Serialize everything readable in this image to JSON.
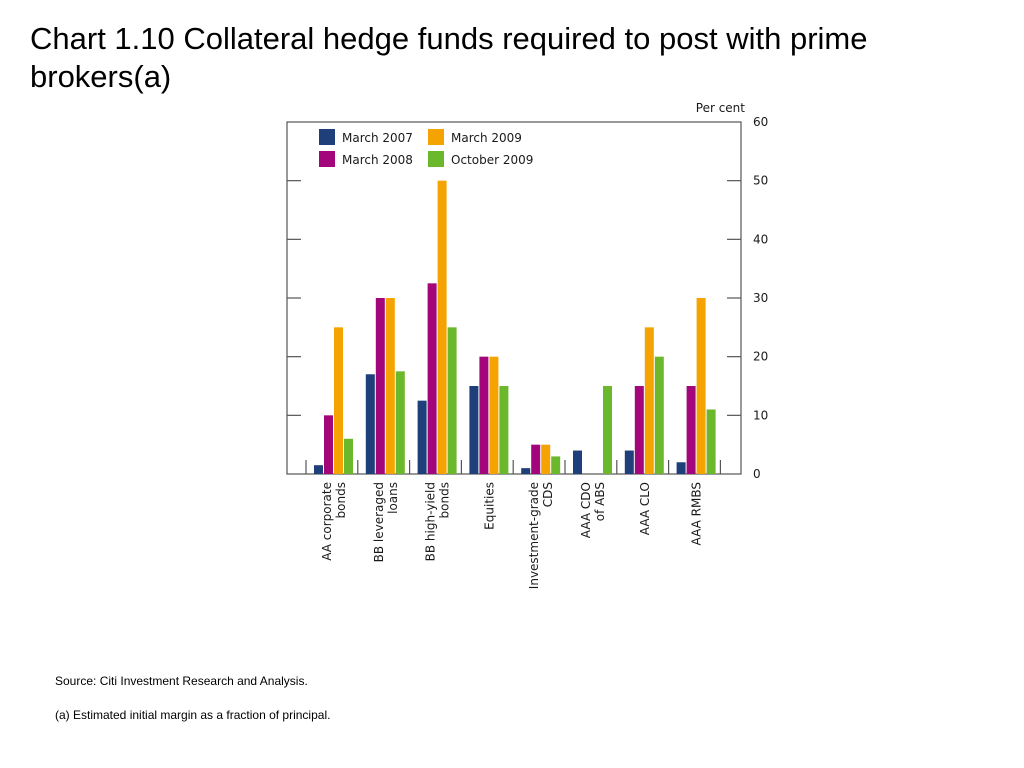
{
  "slide": {
    "title": "Chart 1.10  Collateral hedge funds required to post with prime brokers(a)",
    "source": "Source:  Citi Investment Research and Analysis.",
    "footnote": "(a)  Estimated initial margin as a fraction of principal."
  },
  "chart_data": {
    "type": "bar",
    "title": "",
    "ylabel": "Per cent",
    "ylim": [
      0,
      60
    ],
    "yticks": [
      0,
      10,
      20,
      30,
      40,
      50,
      60
    ],
    "categories": [
      [
        "AA corporate",
        "bonds"
      ],
      [
        "BB leveraged",
        "loans"
      ],
      [
        "BB high-yield",
        "bonds"
      ],
      [
        "Equities"
      ],
      [
        "Investment-grade",
        "CDS"
      ],
      [
        "AAA CDO",
        "of ABS"
      ],
      [
        "AAA CLO"
      ],
      [
        "AAA RMBS"
      ]
    ],
    "series": [
      {
        "name": "March 2007",
        "color": "#1f3f7a",
        "values": [
          1.5,
          17,
          12.5,
          15,
          1,
          4,
          4,
          2
        ]
      },
      {
        "name": "March 2008",
        "color": "#a3057a",
        "values": [
          10,
          30,
          32.5,
          20,
          5,
          null,
          15,
          15
        ]
      },
      {
        "name": "March 2009",
        "color": "#f5a300",
        "values": [
          25,
          30,
          50,
          20,
          5,
          null,
          25,
          30
        ]
      },
      {
        "name": "October 2009",
        "color": "#6cb82c",
        "values": [
          6,
          17.5,
          25,
          15,
          3,
          15,
          20,
          11
        ]
      }
    ],
    "legend_placement": "top-left",
    "grid": false
  }
}
